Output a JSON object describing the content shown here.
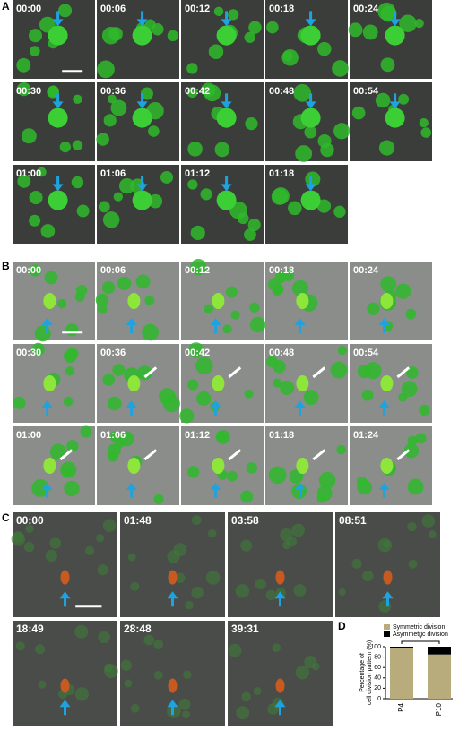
{
  "panels": [
    {
      "label": "A",
      "frames": [
        "00:00",
        "00:06",
        "00:12",
        "00:18",
        "00:24",
        "00:30",
        "00:36",
        "00:42",
        "00:48",
        "00:54",
        "01:00",
        "01:06",
        "01:12",
        "01:18"
      ]
    },
    {
      "label": "B",
      "frames": [
        "00:00",
        "00:06",
        "00:12",
        "00:18",
        "00:24",
        "00:30",
        "00:36",
        "00:42",
        "00:48",
        "00:54",
        "01:00",
        "01:06",
        "01:12",
        "01:18",
        "01:24"
      ]
    },
    {
      "label": "C",
      "frames": [
        "00:00",
        "01:48",
        "03:58",
        "08:51",
        "18:49",
        "28:48",
        "39:31"
      ]
    }
  ],
  "chart_data": {
    "label": "D",
    "type": "bar",
    "ylabel": [
      "Percentage of",
      "cell division pattern (%)"
    ],
    "categories": [
      "P4",
      "P10"
    ],
    "series": [
      {
        "name": "Symmetric division",
        "color": "#b8ab7c",
        "values": [
          98,
          85
        ]
      },
      {
        "name": "Asymmetric division",
        "color": "#000000",
        "values": [
          2,
          15
        ]
      }
    ],
    "ylim": [
      0,
      100
    ],
    "yticks": [
      0,
      20,
      40,
      60,
      80,
      100
    ],
    "annotation": "*"
  }
}
